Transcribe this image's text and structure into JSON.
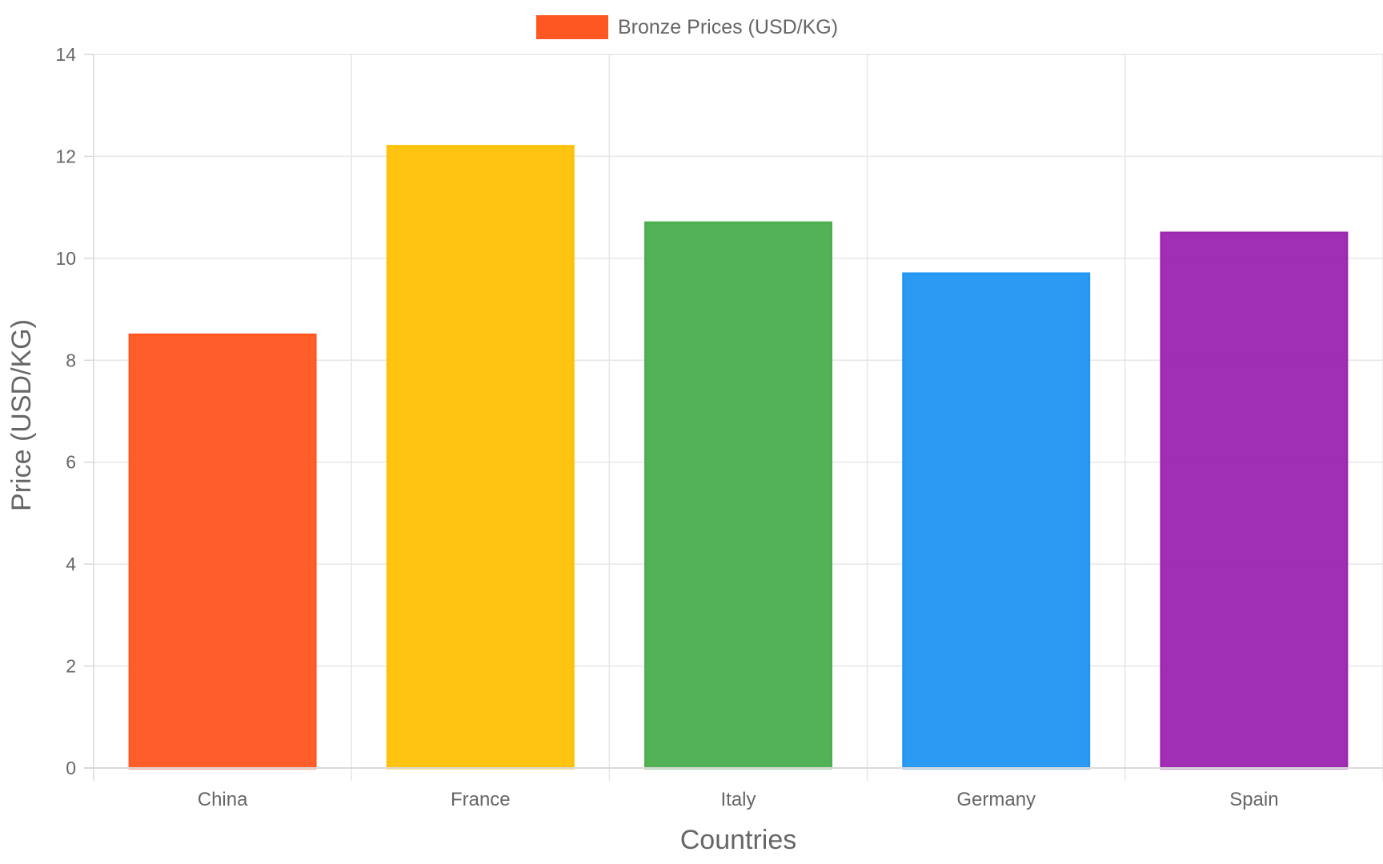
{
  "chart_data": {
    "type": "bar",
    "categories": [
      "China",
      "France",
      "Italy",
      "Germany",
      "Spain"
    ],
    "series": [
      {
        "name": "Bronze Prices (USD/KG)",
        "values": [
          8.5,
          12.2,
          10.7,
          9.7,
          10.5
        ],
        "colors": [
          "#FF5722",
          "#FFC107",
          "#4CAF50",
          "#2196F3",
          "#9C27B0"
        ]
      }
    ],
    "xlabel": "Countries",
    "ylabel": "Price (USD/KG)",
    "ylim": [
      0,
      14
    ],
    "yticks": [
      0,
      2,
      4,
      6,
      8,
      10,
      12,
      14
    ],
    "grid": true,
    "legend_position": "top-center",
    "legend_color": "#FF5722"
  }
}
